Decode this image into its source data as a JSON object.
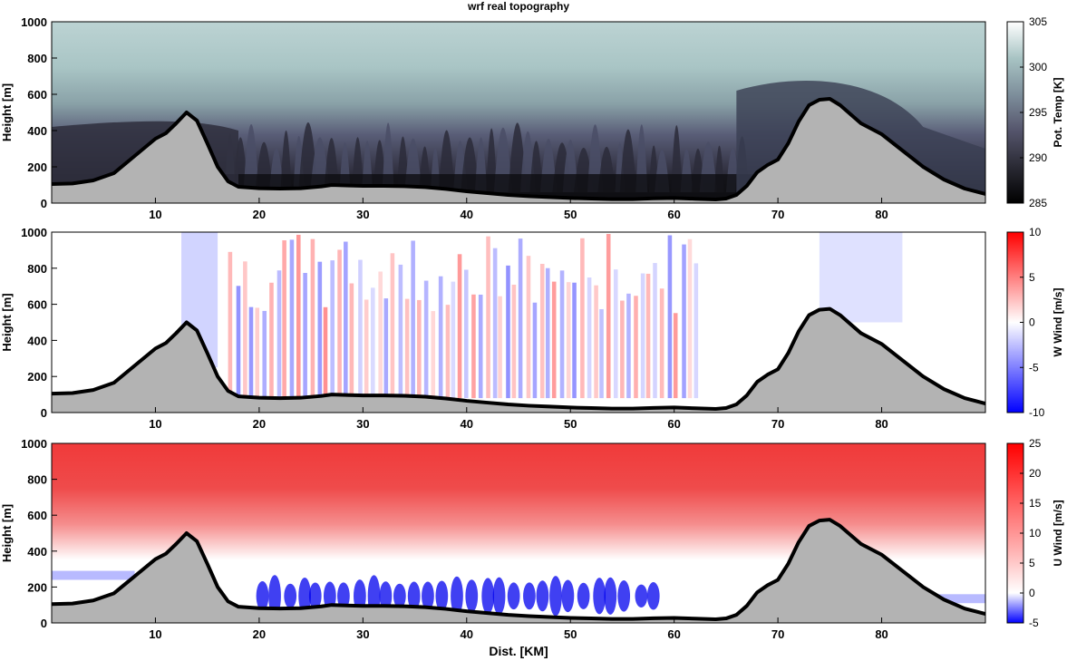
{
  "title": "wrf real topography",
  "x_label": "Dist. [KM]",
  "colors": {
    "terrain_fill": "#b3b3b3",
    "terrain_line": "#000000",
    "pot_cold": "#0c0c10",
    "pot_mid": "#4c4c64",
    "pot_warm": "#a9c5c5",
    "pot_top": "#ffffff",
    "neg_strong": "#0000ff",
    "neutral": "#ffffff",
    "pos_strong": "#ff0000"
  },
  "chart_data": [
    {
      "type": "heatmap",
      "panel": "potential-temperature",
      "x_ticks": [
        "10",
        "20",
        "30",
        "40",
        "50",
        "60",
        "70",
        "80"
      ],
      "y_ticks": [
        "0",
        "200",
        "400",
        "600",
        "800",
        "1000"
      ],
      "ylabel": "Height [m]",
      "xlim": [
        0,
        90
      ],
      "ylim": [
        0,
        1000
      ],
      "colorbar": {
        "label": "Pot. Temp [K]",
        "ticks": [
          "285",
          "290",
          "295",
          "300",
          "305"
        ],
        "range": [
          285,
          305
        ]
      },
      "terrain": {
        "x": [
          0,
          2,
          4,
          6,
          8,
          10,
          11,
          12,
          13,
          14,
          15,
          16,
          17,
          18,
          20,
          22,
          24,
          26,
          27,
          28,
          30,
          32,
          34,
          36,
          38,
          40,
          42,
          44,
          46,
          48,
          50,
          52,
          54,
          56,
          58,
          60,
          62,
          64,
          65,
          66,
          67,
          68,
          69,
          70,
          71,
          72,
          73,
          74,
          75,
          76,
          77,
          78,
          80,
          82,
          84,
          86,
          88,
          90
        ],
        "y": [
          105,
          108,
          125,
          165,
          260,
          355,
          385,
          440,
          500,
          455,
          330,
          200,
          120,
          90,
          82,
          80,
          82,
          92,
          100,
          98,
          95,
          95,
          93,
          88,
          78,
          65,
          55,
          45,
          38,
          33,
          28,
          25,
          22,
          22,
          26,
          28,
          24,
          20,
          25,
          45,
          95,
          170,
          210,
          240,
          330,
          450,
          540,
          570,
          575,
          540,
          490,
          440,
          380,
          290,
          200,
          130,
          80,
          50
        ]
      },
      "notes": "Cold stable air (~285-290 K) fills the valley up to ~400-700 m; warmer air (~298-302 K) above; wave-like plumes of mixing between 17 and 68 km."
    },
    {
      "type": "heatmap",
      "panel": "vertical-wind",
      "x_ticks": [
        "10",
        "20",
        "30",
        "40",
        "50",
        "60",
        "70",
        "80"
      ],
      "y_ticks": [
        "0",
        "200",
        "400",
        "600",
        "800",
        "1000"
      ],
      "ylabel": "Height [m]",
      "xlim": [
        0,
        90
      ],
      "ylim": [
        0,
        1000
      ],
      "colorbar": {
        "label": "W Wind [m/s]",
        "ticks": [
          "10",
          "5",
          "0",
          "-5",
          "-10"
        ],
        "range": [
          -10,
          10
        ]
      },
      "notes": "Alternating updraft/downdraft bands (-5 to +5 m/s) between 17 and 62 km; weak downdraft near 12-16 km and 74-82 km."
    },
    {
      "type": "heatmap",
      "panel": "horizontal-wind",
      "x_ticks": [
        "10",
        "20",
        "30",
        "40",
        "50",
        "60",
        "70",
        "80"
      ],
      "y_ticks": [
        "0",
        "200",
        "400",
        "600",
        "800",
        "1000"
      ],
      "ylabel": "Height [m]",
      "xlim": [
        0,
        90
      ],
      "ylim": [
        0,
        1000
      ],
      "colorbar": {
        "label": "U Wind [m/s]",
        "ticks": [
          "25",
          "20",
          "15",
          "10",
          "5",
          "0",
          "-5"
        ],
        "range": [
          -5,
          25
        ]
      },
      "notes": "Strong westerly flow (~15-20 m/s) above ~400 m; near-zero to negative (-5 m/s) pockets near the ground between 19 and 58 km."
    }
  ]
}
